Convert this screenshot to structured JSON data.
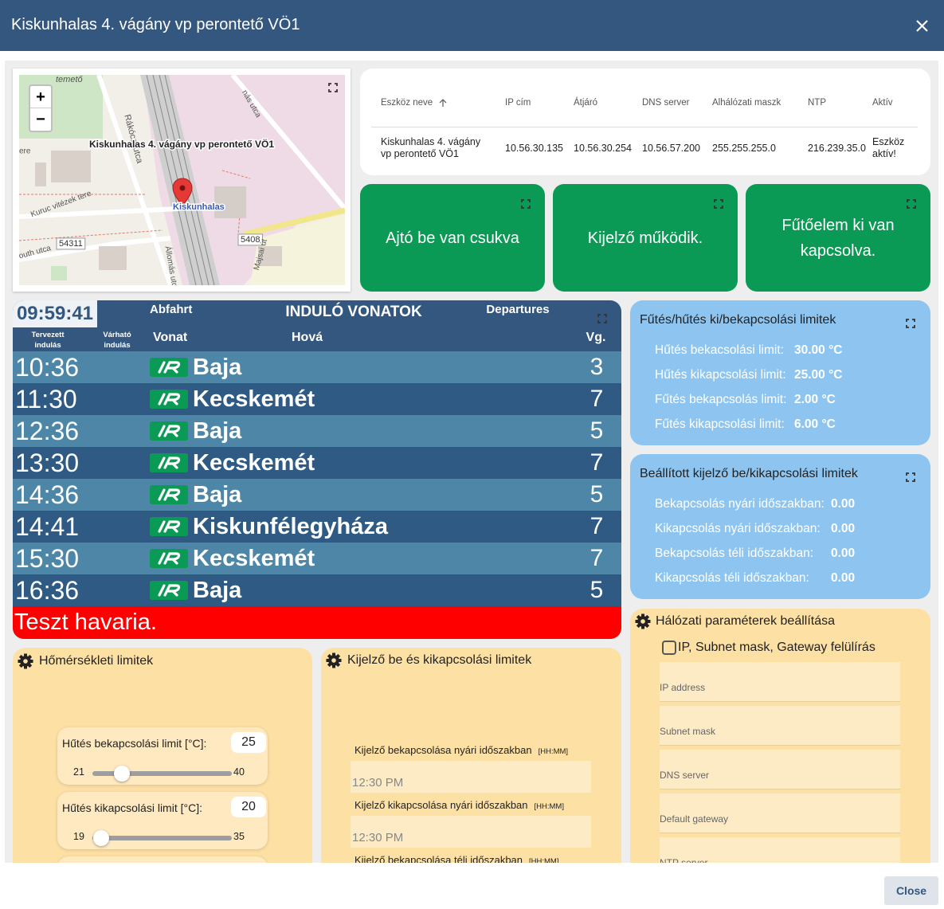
{
  "header": {
    "title": "Kiskunhalas 4. vágány vp perontető VÖ1"
  },
  "map": {
    "zoom_in": "+",
    "zoom_out": "−",
    "marker_label": "Kiskunhalas 4. vágány vp perontető VÖ1",
    "station": "Kiskunhalas",
    "labels": [
      "temető",
      "Rákóczi utca",
      "nás utca",
      "ere",
      "Kuruc vitézek tere",
      "Állomás utca",
      "54311",
      "5408",
      "Majsai út",
      "outh utca"
    ]
  },
  "device_table": {
    "headers": [
      "Eszköz neve",
      "IP cím",
      "Átjáró",
      "DNS server",
      "Alhálózati maszk",
      "NTP",
      "Aktív"
    ],
    "rows": [
      [
        "Kiskunhalas 4. vágány vp perontető VÖ1",
        "10.56.30.135",
        "10.56.30.254",
        "10.56.57.200",
        "255.255.255.0",
        "216.239.35.0",
        "Eszköz aktív!"
      ]
    ]
  },
  "status_cards": [
    "Ajtó be van csukva",
    "Kijelző működik.",
    "Fűtőelem ki van kapcsolva."
  ],
  "departures": {
    "clock": "09:59:41",
    "label_de": "Abfahrt",
    "title": "INDULÓ VONATOK",
    "label_en": "Departures",
    "columns": {
      "planned": "Tervezett indulás",
      "expected": "Várható indulás",
      "train": "Vonat",
      "destination": "Hová",
      "track": "Vg."
    },
    "rows": [
      {
        "time": "10:36",
        "destination": "Baja",
        "track": "3"
      },
      {
        "time": "11:30",
        "destination": "Kecskemét",
        "track": "7"
      },
      {
        "time": "12:36",
        "destination": "Baja",
        "track": "5"
      },
      {
        "time": "13:30",
        "destination": "Kecskemét",
        "track": "7"
      },
      {
        "time": "14:36",
        "destination": "Baja",
        "track": "5"
      },
      {
        "time": "14:41",
        "destination": "Kiskunfélegyháza",
        "track": "7"
      },
      {
        "time": "15:30",
        "destination": "Kecskemét",
        "track": "7"
      },
      {
        "time": "16:36",
        "destination": "Baja",
        "track": "5"
      }
    ],
    "alert": "Teszt havaria."
  },
  "heating_limits": {
    "title": "Fűtés/hűtés ki/bekapcsolási limitek",
    "rows": [
      {
        "label": "Hűtés bekacsolási limit:",
        "value": "30.00 °C"
      },
      {
        "label": "Hűtés kikapcsolási limit:",
        "value": "25.00 °C"
      },
      {
        "label": "Fűtés bekapcsolás limit:",
        "value": "2.00 °C"
      },
      {
        "label": "Fűtés kikapcsolási limit:",
        "value": "6.00 °C"
      }
    ]
  },
  "display_limits": {
    "title": "Beállított kijelző be/kikapcsolási limitek",
    "rows": [
      {
        "label": "Bekapcsolás nyári időszakban:",
        "value": "0.00"
      },
      {
        "label": "Kikapcsolás nyári időszakban:",
        "value": "0.00"
      },
      {
        "label": "Bekapcsolás téli időszakban:",
        "value": "0.00"
      },
      {
        "label": "Kikapcsolás téli időszakban:",
        "value": "0.00"
      }
    ]
  },
  "temperature_settings": {
    "title": "Hőmérsékleti limitek",
    "sliders": [
      {
        "label": "Hűtés bekapcsolási limit [°C]:",
        "value": 25,
        "min": 21,
        "max": 40
      },
      {
        "label": "Hűtés kikapcsolási limit [°C]:",
        "value": 20,
        "min": 19,
        "max": 35
      }
    ]
  },
  "display_settings": {
    "title": "Kijelző be és kikapcsolási limitek",
    "fields": [
      {
        "label": "Kijelző bekapcsolása nyári időszakban",
        "hint": "[HH:MM]",
        "value": "12:30 PM"
      },
      {
        "label": "Kijelző kikapcsolása nyári időszakban",
        "hint": "[HH:MM]",
        "value": "12:30 PM"
      },
      {
        "label": "Kijelző bekapcsolása téli időszakban",
        "hint": "[HH:MM]"
      }
    ]
  },
  "network_settings": {
    "title": "Hálózati paraméterek beállítása",
    "override": "IP, Subnet mask, Gateway felülírás",
    "fields": [
      "IP address",
      "Subnet mask",
      "DNS server",
      "Default gateway",
      "NTP server"
    ]
  },
  "footer": {
    "close": "Close"
  }
}
